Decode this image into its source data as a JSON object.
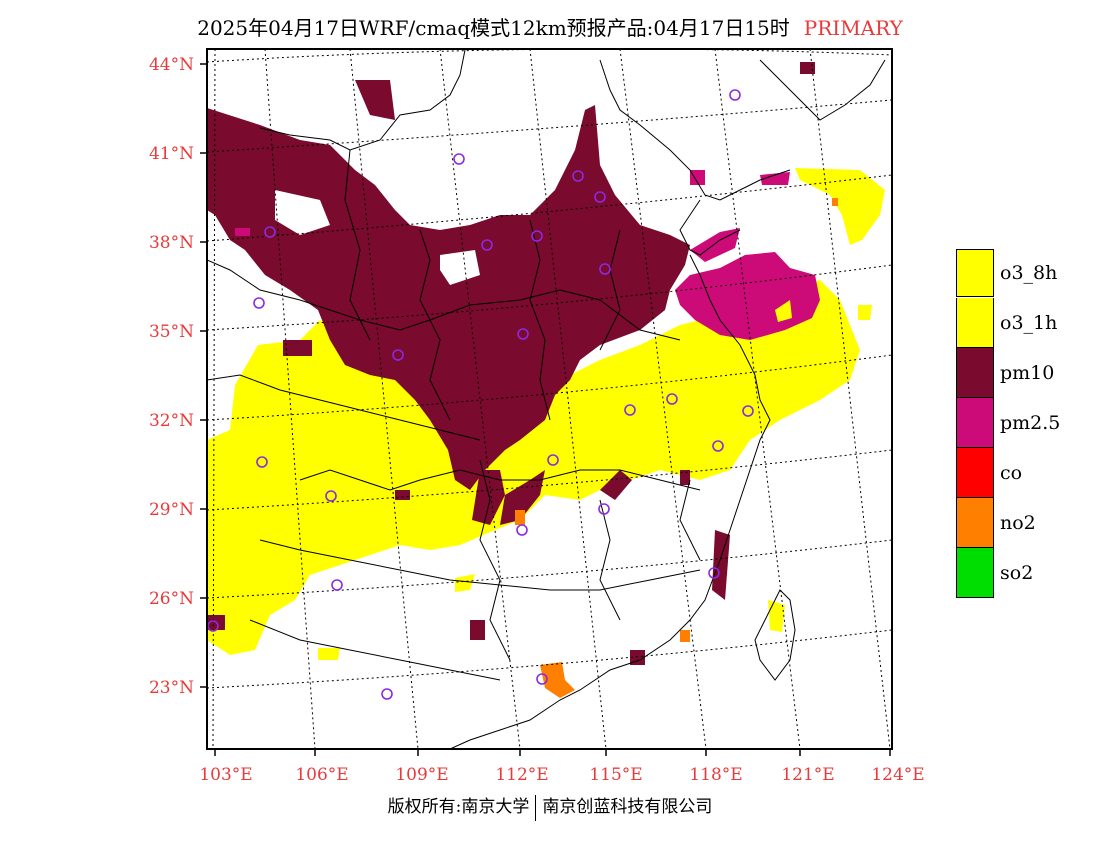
{
  "header": {
    "title": "2025年04月17日WRF/cmaq模式12km预报产品:04月17日15时",
    "tag": "PRIMARY"
  },
  "map": {
    "lat_labels": [
      "44°N",
      "41°N",
      "38°N",
      "35°N",
      "32°N",
      "29°N",
      "26°N",
      "23°N"
    ],
    "lon_labels": [
      "103°E",
      "106°E",
      "109°E",
      "112°E",
      "115°E",
      "118°E",
      "121°E",
      "124°E"
    ],
    "colors": {
      "o3_8h": "#ffff00",
      "o3_1h": "#ffff00",
      "pm10": "#7a0a2e",
      "pm25": "#cc0a78",
      "co": "#ff0000",
      "no2": "#ff7f00",
      "so2": "#00dd00",
      "station": "#8a2be2",
      "label": "#e83a3a"
    }
  },
  "legend": {
    "items": [
      {
        "label": "o3_8h",
        "color": "#ffff00"
      },
      {
        "label": "o3_1h",
        "color": "#ffff00"
      },
      {
        "label": "pm10",
        "color": "#7a0a2e"
      },
      {
        "label": "pm2.5",
        "color": "#cc0a78"
      },
      {
        "label": "co",
        "color": "#ff0000"
      },
      {
        "label": "no2",
        "color": "#ff7f00"
      },
      {
        "label": "so2",
        "color": "#00dd00"
      }
    ]
  },
  "footer": {
    "left": "版权所有:南京大学",
    "right": "南京创蓝科技有限公司"
  }
}
